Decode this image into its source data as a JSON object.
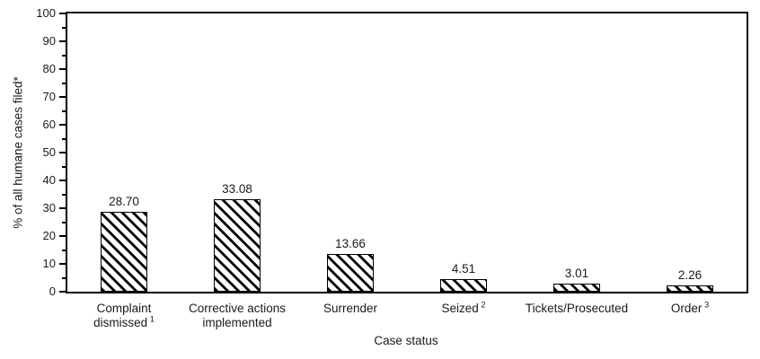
{
  "chart_data": {
    "type": "bar",
    "title": "",
    "xlabel": "Case status",
    "ylabel": "% of all humane cases filed*",
    "ylim": [
      0,
      100
    ],
    "y_major_ticks": [
      0,
      10,
      20,
      30,
      40,
      50,
      60,
      70,
      80,
      90,
      100
    ],
    "y_minor_ticks": [
      5,
      15,
      25,
      35,
      45,
      55,
      65,
      75,
      85,
      95
    ],
    "grid": "off",
    "legend": "none",
    "bar_style": {
      "hatch": "diagonal-down",
      "stroke": "#000000",
      "fill": "#ffffff"
    },
    "categories": [
      {
        "lines": [
          "Complaint",
          "dismissed"
        ],
        "sup": "1"
      },
      {
        "lines": [
          "Corrective actions",
          "implemented"
        ],
        "sup": ""
      },
      {
        "lines": [
          "Surrender"
        ],
        "sup": ""
      },
      {
        "lines": [
          "Seized"
        ],
        "sup": "2"
      },
      {
        "lines": [
          "Tickets/Prosecuted"
        ],
        "sup": ""
      },
      {
        "lines": [
          "Order"
        ],
        "sup": "3"
      }
    ],
    "values": [
      28.7,
      33.08,
      13.66,
      4.51,
      3.01,
      2.26
    ],
    "value_labels": [
      "28.70",
      "33.08",
      "13.66",
      "4.51",
      "3.01",
      "2.26"
    ]
  }
}
